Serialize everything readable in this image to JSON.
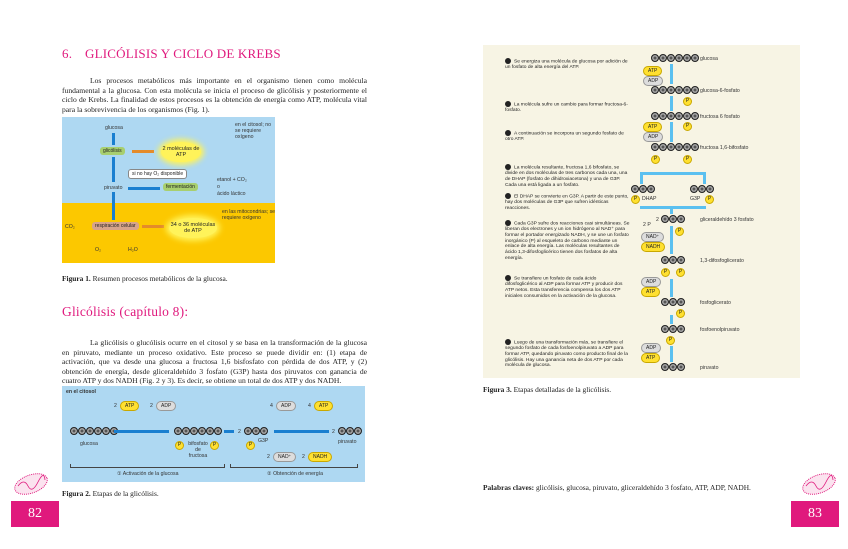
{
  "left_page": {
    "section_number": "6.",
    "section_title": "GLICÓLISIS Y CICLO DE KREBS",
    "intro": "Los procesos metabólicos más importante en el organismo tienen como molécula fundamental a la glucosa. Con esta molécula se inicia el proceso de glicólisis y posteriormente el ciclo de Krebs. La finalidad de estos procesos es la obtención de energía como ATP, molécula vital para la sobrevivencia de los organismos (Fig. 1).",
    "figure1": {
      "glucosa": "glucosa",
      "glicolisis": "glicólisis",
      "atp2": "2 moléculas de ATP",
      "citosol_note": "en el citosol; no se requiere oxígeno",
      "no_o2": "si no hay O₂ disponible",
      "piruvato": "piruvato",
      "fermentacion": "fermentación",
      "etanol": "etanol + CO₂",
      "o": "o",
      "lactico": "ácido láctico",
      "mito_note": "en las mitocondrias; se requiere oxígeno",
      "co2": "CO₂",
      "respiracion": "respiración celular",
      "atp34": "34 o 36 moléculas de ATP",
      "o2": "O₂",
      "h2o": "H₂O",
      "caption_label": "Figura 1.",
      "caption": "Resumen procesos metabólicos de la glucosa."
    },
    "subtitle": "Glicólisis (capítulo 8):",
    "paragraph": "La glicólisis o glucólisis ocurre en el citosol y se basa en la transformación de la glucosa en piruvato, mediante un proceso oxidativo. Este proceso se puede dividir en: (1) etapa de activación, que va desde una glucosa a fructosa 1,6 bisfosfato con pérdida de dos ATP, y (2) obtención de energía, desde gliceraldehído 3 fosfato (G3P) hasta dos piruvatos con ganancia de cuatro ATP y dos NADH (Fig. 2 y 3). Es decir, se obtiene un total de dos ATP y dos NADH.",
    "figure2": {
      "location": "en el citosol",
      "atp_in": "2",
      "atp": "ATP",
      "adp_out": "2",
      "adp": "ADP",
      "glucosa": "glucosa",
      "bifosfato": "bifosfato de fructosa",
      "p": "P",
      "g3p_count": "2",
      "g3p": "G3P",
      "adp4": "4",
      "atp4": "4",
      "nad2": "2",
      "nad": "NAD⁺",
      "nadh2": "2",
      "nadh": "NADH",
      "piruvato_count": "2",
      "piruvato": "piruvato",
      "stage1": "① Activación de la glucosa",
      "stage2": "② Obtención de energía",
      "caption_label": "Figura 2.",
      "caption": "Etapas de la glicólisis."
    },
    "page_number": "82"
  },
  "right_page": {
    "figure3": {
      "steps": [
        "Se energiza una molécula de glucosa por adición de un fosfato de alta energía del ATP.",
        "La molécula sufre un cambio para formar fructosa-6-fosfato.",
        "A continuación se incorpora un segundo fosfato de otro ATP.",
        "La molécula resultante, fructosa 1,6 bifosfato, se divide en dos moléculas de tres carbonos cada una, una de DHAP (fosfato de dihidroxiacetona) y una de G3P. Cada una está ligada a un fosfato.",
        "El DHAP se convierte en G3P. A partir de este punto, hay dos moléculas de G3P que sufren idénticas reacciones.",
        "Cada G3P sufre dos reacciones casi simultáneas. Se liberan dos electrones y un ion hidrógeno al NAD⁺ para formar el portador energizado NADH, y se une un fosfato inorgánico (P) al esqueleto de carbono mediante un enlace de alta energía. Las moléculas resultantes de ácido 1,3-difosfoglicérico tienen dos fosfatos de alta energía.",
        "Se transfiere un fosfato de cada ácido difosfoglicérico al ADP para formar ATP y producir dos ATP netos. Esta transferencia compensa los dos ATP iniciales consumidos en la activación de la glucosa.",
        "Luego de una transformación más, se transfiere el segundo fosfato de cada fosfoenolpiruvato a ADP para formar ATP, quedando piruvato como producto final de la glicólisis. Hay una ganancia neta de dos ATP por cada molécula de glucosa."
      ],
      "labels": [
        "glucosa",
        "glucosa-6-fosfato",
        "fructosa 6 fosfato",
        "fructosa 1,6-bifosfato",
        "gliceraldehído 3 fosfato",
        "1,3-difosfoglicerato",
        "fosfoglicerato",
        "fosfoenolpiruvato",
        "piruvato"
      ],
      "atp": "ATP",
      "adp": "ADP",
      "nad": "NAD⁺",
      "nadh": "NADH",
      "p": "P",
      "dhap": "DHAP",
      "g3p": "G3P",
      "two": "2",
      "two_p": "2 P",
      "caption_label": "Figura 3.",
      "caption": "Etapas detalladas de la glicólisis."
    },
    "keywords_label": "Palabras claves:",
    "keywords": "glicólisis, glucosa, piruvato, gliceraldehído 3 fosfato, ATP, ADP, NADH.",
    "page_number": "83"
  },
  "colors": {
    "accent": "#e0197d",
    "fig_blue": "#aed8f2",
    "fig_yellow": "#fcc800",
    "fig3_bg": "#f7f4e4"
  }
}
